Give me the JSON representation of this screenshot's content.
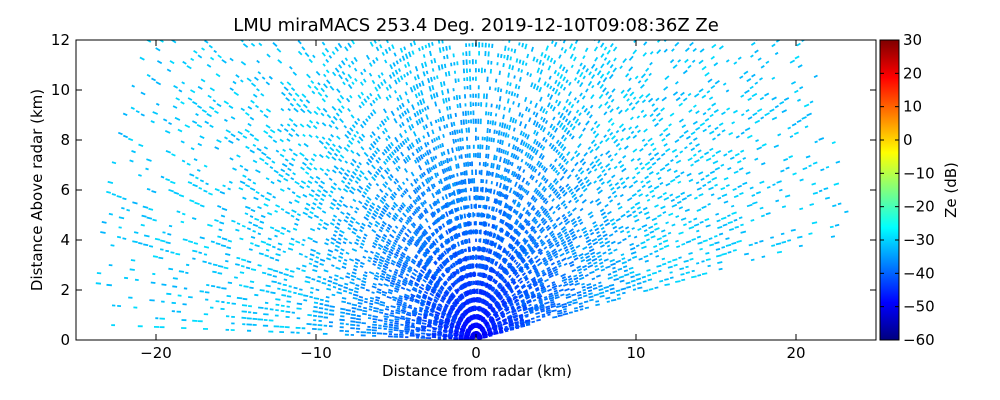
{
  "chart_data": {
    "type": "heatmap",
    "title": "LMU miraMACS 253.4 Deg. 2019-12-10T09:08:36Z  Ze",
    "xlabel": "Distance from radar (km)",
    "ylabel": "Distance Above radar  (km)",
    "xlim": [
      -25,
      25
    ],
    "ylim": [
      0,
      12
    ],
    "x_ticks": [
      -20,
      -10,
      0,
      10,
      20
    ],
    "y_ticks": [
      0,
      2,
      4,
      6,
      8,
      10,
      12
    ],
    "x_tick_labels": [
      "−20",
      "−10",
      "0",
      "10",
      "20"
    ],
    "y_tick_labels": [
      "0",
      "2",
      "4",
      "6",
      "8",
      "10",
      "12"
    ],
    "field": "Ze",
    "colorbar": {
      "label": "Ze (dB)",
      "range": [
        -60,
        30
      ],
      "ticks": [
        30,
        20,
        10,
        0,
        -10,
        -20,
        -30,
        -40,
        -50,
        -60
      ],
      "tick_labels": [
        "30",
        "20",
        "10",
        "0",
        "−10",
        "−20",
        "−30",
        "−40",
        "−50",
        "−60"
      ],
      "colormap": "jet"
    },
    "scan": {
      "azimuth_deg": 253.4,
      "max_range_km": 24,
      "min_elevation_deg": {
        "left": 1.5,
        "right": 10.5
      },
      "ze_near_radar_db": -53,
      "ze_far_range_db": -31
    }
  },
  "colors": {
    "axes": "#000000",
    "background": "#ffffff",
    "jet_stops": [
      "#00007f",
      "#0000ff",
      "#007fff",
      "#00ffff",
      "#7fff7f",
      "#ffff00",
      "#ff7f00",
      "#ff0000",
      "#7f0000"
    ]
  }
}
